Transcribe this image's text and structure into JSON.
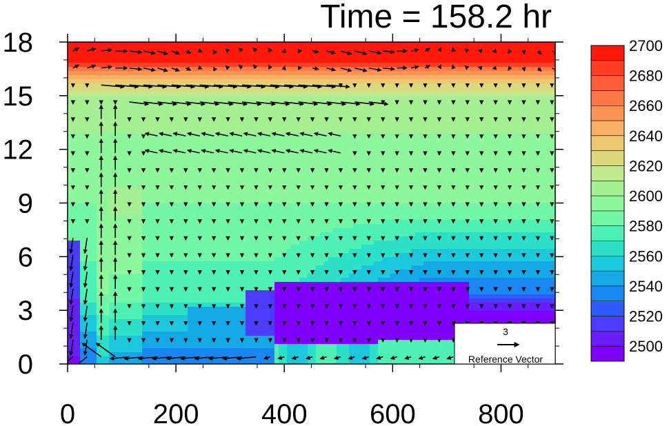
{
  "chart_data": {
    "type": "heatmap",
    "title": "Time = 158.2 hr",
    "xlabel": "",
    "ylabel": "",
    "xlim": [
      0,
      900
    ],
    "ylim": [
      0,
      18
    ],
    "x_ticks": [
      0,
      200,
      400,
      600,
      800
    ],
    "y_ticks": [
      0,
      3,
      6,
      9,
      12,
      15,
      18
    ],
    "x_tick_labels": [
      "0",
      "200",
      "400",
      "600",
      "800"
    ],
    "y_tick_labels": [
      "0",
      "3",
      "6",
      "9",
      "12",
      "15",
      "18"
    ],
    "colorbar": {
      "levels": [
        2490,
        2500,
        2510,
        2520,
        2530,
        2540,
        2550,
        2560,
        2570,
        2580,
        2590,
        2600,
        2610,
        2620,
        2630,
        2640,
        2650,
        2660,
        2670,
        2680,
        2690,
        2700
      ],
      "tick_values": [
        2500,
        2520,
        2540,
        2560,
        2580,
        2600,
        2620,
        2640,
        2660,
        2680,
        2700
      ],
      "tick_labels": [
        "2500",
        "2520",
        "2540",
        "2560",
        "2580",
        "2600",
        "2620",
        "2640",
        "2660",
        "2680",
        "2700"
      ],
      "colors": [
        "#7f00ff",
        "#6a1dff",
        "#4b3cff",
        "#2e5cff",
        "#1a86ef",
        "#14a8e6",
        "#1dc8dd",
        "#2de0c8",
        "#4ef0b5",
        "#72f7a6",
        "#8ff79b",
        "#a6f093",
        "#c1e98d",
        "#dcd87c",
        "#eec86e",
        "#f8b064",
        "#fb9556",
        "#fd7a48",
        "#fe5e38",
        "#ff3f24",
        "#ff1a0e"
      ]
    },
    "reference_vector": {
      "magnitude": "3",
      "label": "Reference Vector"
    },
    "grid": false,
    "vector_field": "wind vectors overlaid on filled contours"
  }
}
